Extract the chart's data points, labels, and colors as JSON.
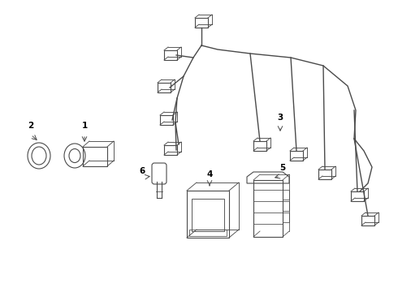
{
  "bg_color": "#ffffff",
  "line_color": "#4a4a4a",
  "text_color": "#000000",
  "lw": 0.8,
  "fig_width": 4.9,
  "fig_height": 3.6,
  "dpi": 100
}
